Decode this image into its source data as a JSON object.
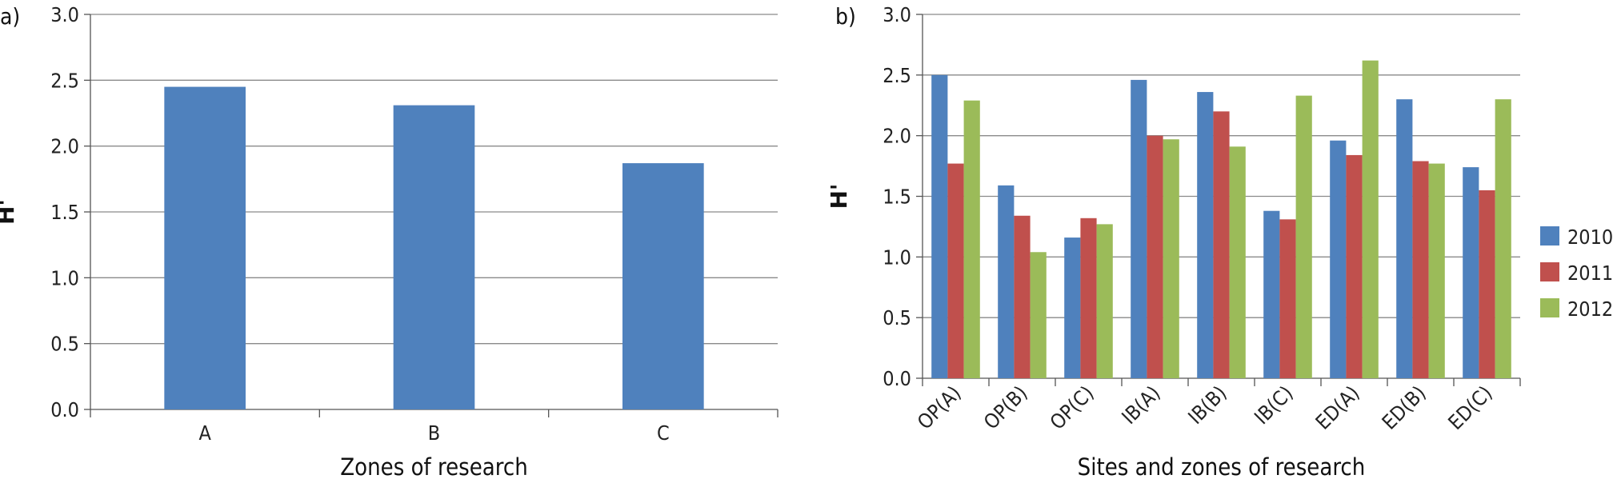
{
  "chart_data": [
    {
      "type": "bar",
      "panel_label": "a)",
      "categories": [
        "A",
        "B",
        "C"
      ],
      "series": [
        {
          "values": [
            2.45,
            2.31,
            1.87
          ],
          "color": "#4F81BD"
        }
      ],
      "xlabel": "Zones of research",
      "ylabel": "H'",
      "ylim": [
        0,
        3.0
      ],
      "yticks": [
        "0.0",
        "0.5",
        "1.0",
        "1.5",
        "2.0",
        "2.5",
        "3.0"
      ],
      "grid": true
    },
    {
      "type": "bar",
      "panel_label": "b)",
      "categories": [
        "OP(A)",
        "OP(B)",
        "OP(C)",
        "IB(A)",
        "IB(B)",
        "IB(C)",
        "ED(A)",
        "ED(B)",
        "ED(C)"
      ],
      "series": [
        {
          "name": "2010",
          "color": "#4F81BD",
          "values": [
            2.5,
            1.59,
            1.16,
            2.46,
            2.36,
            1.38,
            1.96,
            2.3,
            1.74
          ]
        },
        {
          "name": "2011",
          "color": "#C0504D",
          "values": [
            1.77,
            1.34,
            1.32,
            2.0,
            2.2,
            1.31,
            1.84,
            1.79,
            1.55
          ]
        },
        {
          "name": "2012",
          "color": "#9BBB59",
          "values": [
            2.29,
            1.04,
            1.27,
            1.97,
            1.91,
            2.33,
            2.62,
            1.77,
            2.3
          ]
        }
      ],
      "xlabel": "Sites and zones of research",
      "ylabel": "H'",
      "ylim": [
        0,
        3.0
      ],
      "yticks": [
        "0.0",
        "0.5",
        "1.0",
        "1.5",
        "2.0",
        "2.5",
        "3.0"
      ],
      "grid": true,
      "legend": "right"
    }
  ]
}
